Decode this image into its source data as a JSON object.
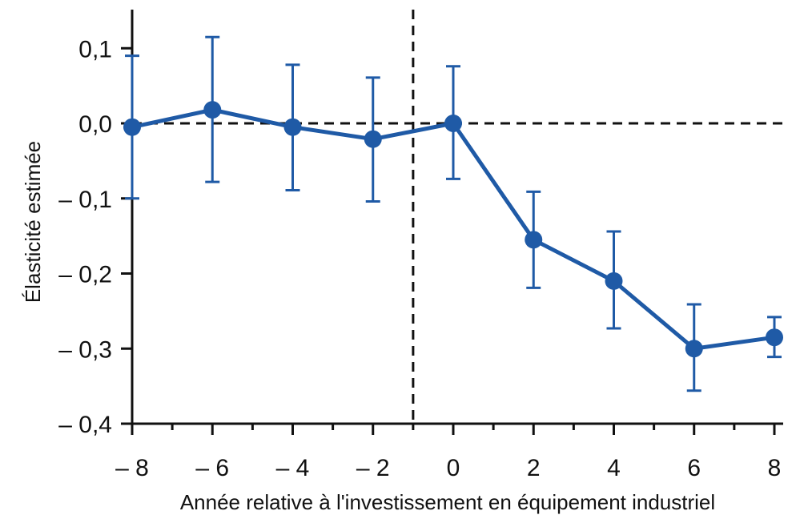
{
  "chart_data": {
    "type": "line",
    "title": "",
    "xlabel": "Année relative à l'investissement en équipement industriel",
    "ylabel": "Élasticité estimée",
    "xlim": [
      -8,
      8
    ],
    "ylim": [
      -0.4,
      0.15
    ],
    "x_ticks": [
      -8,
      -6,
      -4,
      -2,
      0,
      2,
      4,
      6,
      8
    ],
    "x_tick_labels": [
      "– 8",
      "– 6",
      "– 4",
      "– 2",
      "0",
      "2",
      "4",
      "6",
      "8"
    ],
    "x_minor_ticks": [
      -7,
      -5,
      -3,
      -1,
      1,
      3,
      5,
      7
    ],
    "y_ticks": [
      0.1,
      0.0,
      -0.1,
      -0.2,
      -0.3,
      -0.4
    ],
    "y_tick_labels": [
      "0,1",
      "0,0",
      "– 0,1",
      "– 0,2",
      "– 0,3",
      "– 0,4"
    ],
    "reference_lines": {
      "horizontal_y": 0,
      "vertical_x": -1
    },
    "grid": false,
    "series": [
      {
        "x": [
          -8,
          -6,
          -4,
          -2,
          0,
          2,
          4,
          6,
          8
        ],
        "y": [
          -0.005,
          0.018,
          -0.005,
          -0.021,
          0.0,
          -0.155,
          -0.21,
          -0.3,
          -0.285
        ],
        "lower": [
          -0.1,
          -0.078,
          -0.089,
          -0.104,
          -0.074,
          -0.219,
          -0.273,
          -0.356,
          -0.311
        ],
        "upper": [
          0.09,
          0.115,
          0.078,
          0.061,
          0.076,
          -0.091,
          -0.144,
          -0.241,
          -0.258
        ]
      }
    ],
    "colors": {
      "series": "#1f5aa6",
      "axis": "#111111",
      "reference": "#111111"
    }
  }
}
